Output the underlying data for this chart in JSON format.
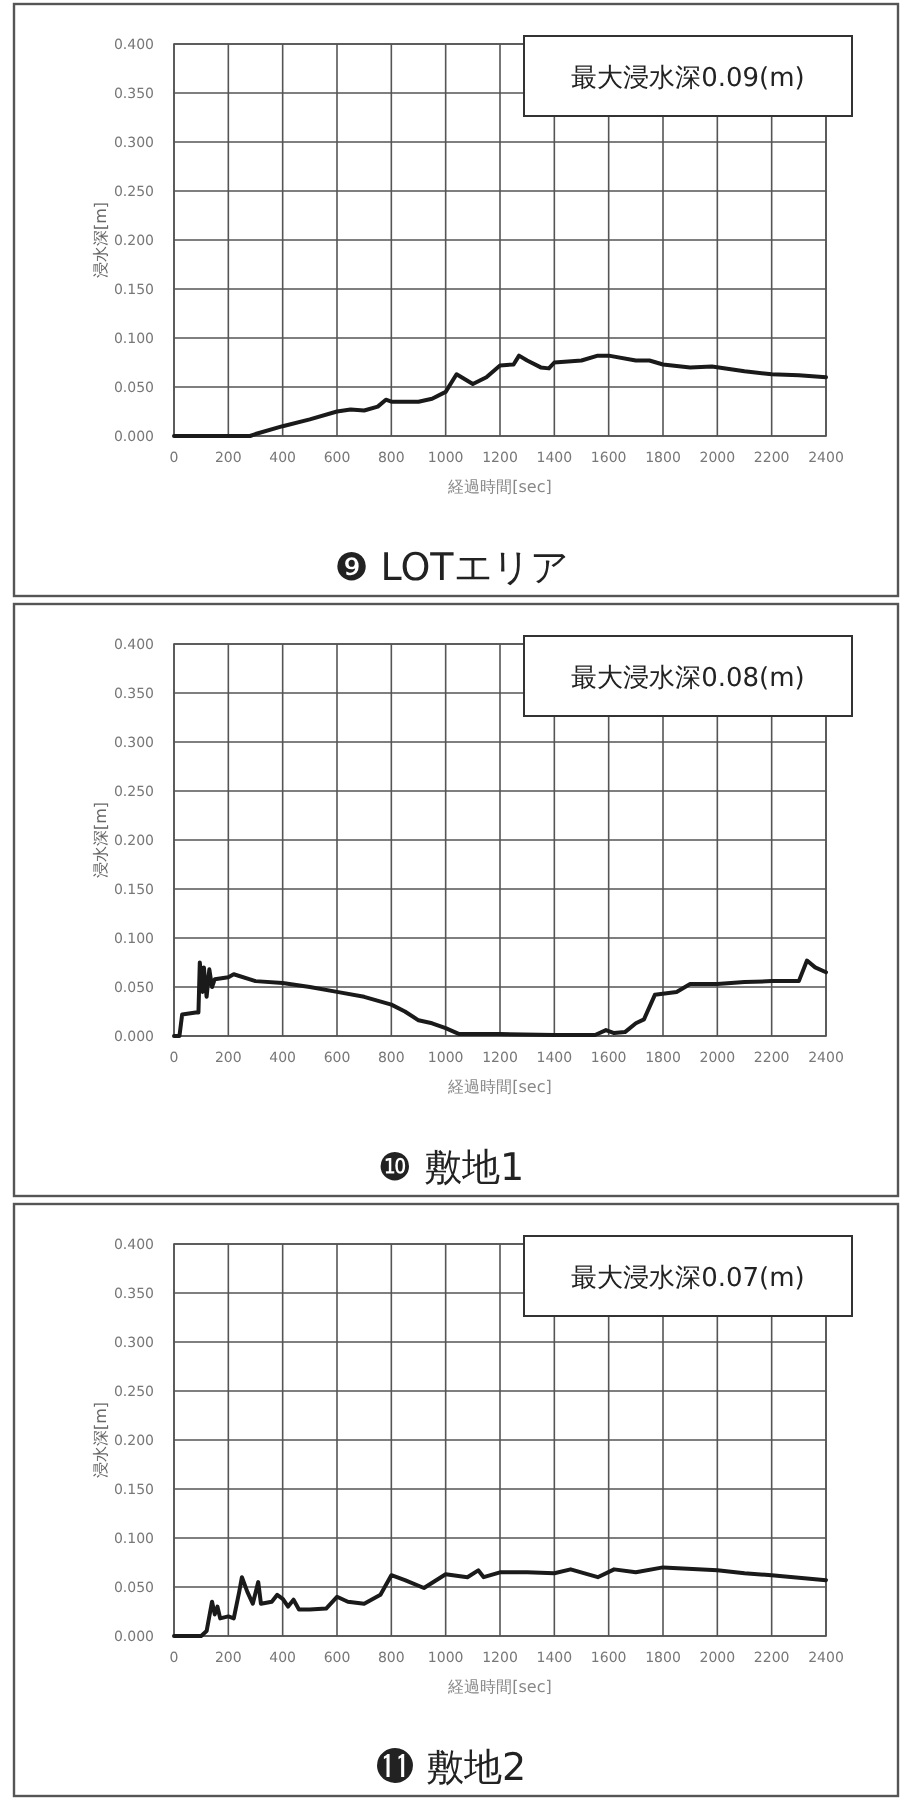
{
  "chart_data": [
    {
      "type": "line",
      "title": "❾ LOTエリア",
      "xlabel": "経過時間[sec]",
      "ylabel": "浸水深[m]",
      "annotations": [
        "最大浸水深0.09(m)"
      ],
      "color": "#1a1a1a",
      "line_style": "solid",
      "grid": true,
      "xlim": [
        0,
        2400
      ],
      "ylim": [
        0,
        0.4
      ],
      "xticks": [
        0,
        200,
        400,
        600,
        800,
        1000,
        1200,
        1400,
        1600,
        1800,
        2000,
        2200,
        2400
      ],
      "yticks": [
        {
          "value": 0,
          "label": "0.000"
        },
        {
          "value": 0.05,
          "label": "0.050"
        },
        {
          "value": 0.1,
          "label": "0.100"
        },
        {
          "value": 0.15,
          "label": "0.150"
        },
        {
          "value": 0.2,
          "label": "0.200"
        },
        {
          "value": 0.25,
          "label": "0.250"
        },
        {
          "value": 0.3,
          "label": "0.300"
        },
        {
          "value": 0.35,
          "label": "0.350"
        },
        {
          "value": 0.4,
          "label": "0.400"
        }
      ],
      "x": [
        0,
        280,
        300,
        400,
        500,
        600,
        650,
        700,
        750,
        780,
        800,
        900,
        950,
        1000,
        1040,
        1100,
        1150,
        1200,
        1250,
        1270,
        1300,
        1350,
        1380,
        1400,
        1500,
        1560,
        1600,
        1700,
        1750,
        1800,
        1900,
        1980,
        2100,
        2200,
        2300,
        2400
      ],
      "values": [
        0,
        0,
        0.002,
        0.01,
        0.017,
        0.025,
        0.027,
        0.026,
        0.03,
        0.037,
        0.035,
        0.035,
        0.038,
        0.045,
        0.063,
        0.053,
        0.06,
        0.072,
        0.073,
        0.082,
        0.077,
        0.07,
        0.069,
        0.075,
        0.077,
        0.082,
        0.082,
        0.077,
        0.077,
        0.073,
        0.07,
        0.071,
        0.066,
        0.063,
        0.062,
        0.06
      ]
    },
    {
      "type": "line",
      "title": "❿ 敷地1",
      "xlabel": "経過時間[sec]",
      "ylabel": "浸水深[m]",
      "annotations": [
        "最大浸水深0.08(m)"
      ],
      "color": "#1a1a1a",
      "line_style": "solid",
      "grid": true,
      "xlim": [
        0,
        2400
      ],
      "ylim": [
        0,
        0.4
      ],
      "xticks": [
        0,
        200,
        400,
        600,
        800,
        1000,
        1200,
        1400,
        1600,
        1800,
        2000,
        2200,
        2400
      ],
      "yticks": [
        {
          "value": 0,
          "label": "0.000"
        },
        {
          "value": 0.05,
          "label": "0.050"
        },
        {
          "value": 0.1,
          "label": "0.100"
        },
        {
          "value": 0.15,
          "label": "0.150"
        },
        {
          "value": 0.2,
          "label": "0.200"
        },
        {
          "value": 0.25,
          "label": "0.250"
        },
        {
          "value": 0.3,
          "label": "0.300"
        },
        {
          "value": 0.35,
          "label": "0.350"
        },
        {
          "value": 0.4,
          "label": "0.400"
        }
      ],
      "x": [
        0,
        20,
        30,
        80,
        90,
        95,
        105,
        110,
        120,
        130,
        140,
        150,
        200,
        220,
        300,
        400,
        500,
        600,
        700,
        800,
        850,
        900,
        950,
        1000,
        1050,
        1200,
        1400,
        1550,
        1590,
        1620,
        1660,
        1700,
        1730,
        1770,
        1850,
        1900,
        2000,
        2100,
        2200,
        2300,
        2330,
        2360,
        2400
      ],
      "values": [
        0,
        0,
        0.022,
        0.024,
        0.024,
        0.075,
        0.045,
        0.07,
        0.04,
        0.068,
        0.05,
        0.058,
        0.06,
        0.063,
        0.056,
        0.054,
        0.05,
        0.045,
        0.04,
        0.032,
        0.025,
        0.016,
        0.013,
        0.008,
        0.002,
        0.002,
        0.001,
        0.001,
        0.006,
        0.003,
        0.004,
        0.013,
        0.017,
        0.042,
        0.045,
        0.053,
        0.053,
        0.055,
        0.056,
        0.056,
        0.077,
        0.07,
        0.065
      ]
    },
    {
      "type": "line",
      "title": "⓫ 敷地2",
      "xlabel": "経過時間[sec]",
      "ylabel": "浸水深[m]",
      "annotations": [
        "最大浸水深0.07(m)"
      ],
      "color": "#1a1a1a",
      "line_style": "solid",
      "grid": true,
      "xlim": [
        0,
        2400
      ],
      "ylim": [
        0,
        0.4
      ],
      "xticks": [
        0,
        200,
        400,
        600,
        800,
        1000,
        1200,
        1400,
        1600,
        1800,
        2000,
        2200,
        2400
      ],
      "yticks": [
        {
          "value": 0,
          "label": "0.000"
        },
        {
          "value": 0.05,
          "label": "0.050"
        },
        {
          "value": 0.1,
          "label": "0.100"
        },
        {
          "value": 0.15,
          "label": "0.150"
        },
        {
          "value": 0.2,
          "label": "0.200"
        },
        {
          "value": 0.25,
          "label": "0.250"
        },
        {
          "value": 0.3,
          "label": "0.300"
        },
        {
          "value": 0.35,
          "label": "0.350"
        },
        {
          "value": 0.4,
          "label": "0.400"
        }
      ],
      "x": [
        0,
        100,
        120,
        140,
        150,
        160,
        170,
        200,
        220,
        240,
        250,
        270,
        290,
        310,
        320,
        360,
        380,
        400,
        420,
        440,
        460,
        500,
        560,
        600,
        640,
        700,
        760,
        800,
        850,
        920,
        1000,
        1080,
        1120,
        1140,
        1200,
        1300,
        1400,
        1460,
        1560,
        1620,
        1700,
        1800,
        2000,
        2100,
        2200,
        2400
      ],
      "values": [
        0,
        0,
        0.005,
        0.035,
        0.022,
        0.03,
        0.018,
        0.02,
        0.018,
        0.045,
        0.06,
        0.045,
        0.033,
        0.055,
        0.033,
        0.035,
        0.042,
        0.038,
        0.03,
        0.037,
        0.027,
        0.027,
        0.028,
        0.04,
        0.035,
        0.033,
        0.042,
        0.062,
        0.057,
        0.049,
        0.063,
        0.06,
        0.067,
        0.06,
        0.065,
        0.065,
        0.064,
        0.068,
        0.06,
        0.068,
        0.065,
        0.07,
        0.067,
        0.064,
        0.062,
        0.057
      ]
    }
  ]
}
